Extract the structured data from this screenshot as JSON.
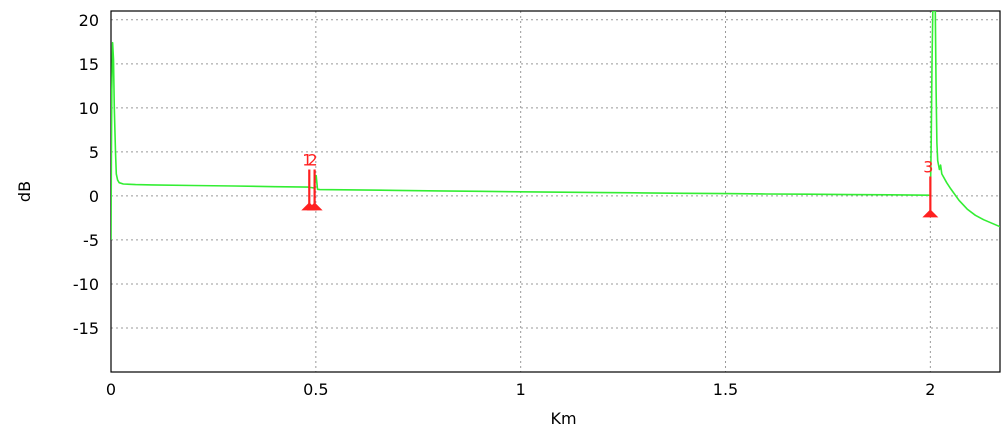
{
  "chart_data": {
    "type": "line",
    "xlabel": "Km",
    "ylabel": "dB",
    "xlim": [
      0,
      2.17
    ],
    "ylim": [
      -20,
      21
    ],
    "x_ticks": [
      {
        "value": 0,
        "label": "0"
      },
      {
        "value": 0.5,
        "label": "0.5"
      },
      {
        "value": 1,
        "label": "1"
      },
      {
        "value": 1.5,
        "label": "1.5"
      },
      {
        "value": 2,
        "label": "2"
      }
    ],
    "y_ticks": [
      {
        "value": 20,
        "label": "20"
      },
      {
        "value": 15,
        "label": "15"
      },
      {
        "value": 10,
        "label": "10"
      },
      {
        "value": 5,
        "label": "5"
      },
      {
        "value": 0,
        "label": "0"
      },
      {
        "value": -5,
        "label": "-5"
      },
      {
        "value": -10,
        "label": "-10"
      },
      {
        "value": -15,
        "label": "-15"
      }
    ],
    "grid": true,
    "colors": {
      "trace": "#33ee33",
      "marker": "#ff2020",
      "grid": "#999999",
      "axis": "#000000"
    },
    "series": [
      {
        "points": [
          [
            0.0,
            -5.0
          ],
          [
            0.001,
            5.0
          ],
          [
            0.002,
            12.0
          ],
          [
            0.004,
            17.4
          ],
          [
            0.006,
            15.5
          ],
          [
            0.008,
            10.0
          ],
          [
            0.011,
            5.0
          ],
          [
            0.013,
            2.5
          ],
          [
            0.016,
            1.8
          ],
          [
            0.02,
            1.5
          ],
          [
            0.03,
            1.35
          ],
          [
            0.06,
            1.28
          ],
          [
            0.1,
            1.25
          ],
          [
            0.2,
            1.18
          ],
          [
            0.3,
            1.12
          ],
          [
            0.4,
            1.05
          ],
          [
            0.48,
            1.0
          ],
          [
            0.488,
            0.95
          ],
          [
            0.496,
            0.9
          ],
          [
            0.499,
            2.3
          ],
          [
            0.501,
            2.3
          ],
          [
            0.504,
            0.75
          ],
          [
            0.51,
            0.72
          ],
          [
            0.6,
            0.68
          ],
          [
            0.7,
            0.62
          ],
          [
            0.8,
            0.57
          ],
          [
            0.9,
            0.52
          ],
          [
            1.0,
            0.47
          ],
          [
            1.1,
            0.42
          ],
          [
            1.2,
            0.38
          ],
          [
            1.3,
            0.34
          ],
          [
            1.4,
            0.3
          ],
          [
            1.5,
            0.26
          ],
          [
            1.6,
            0.22
          ],
          [
            1.7,
            0.19
          ],
          [
            1.8,
            0.15
          ],
          [
            1.9,
            0.12
          ],
          [
            1.995,
            0.08
          ],
          [
            2.0,
            0.05
          ],
          [
            2.002,
            6.0
          ],
          [
            2.004,
            15.0
          ],
          [
            2.006,
            21.0
          ],
          [
            2.012,
            21.0
          ],
          [
            2.014,
            12.0
          ],
          [
            2.016,
            6.0
          ],
          [
            2.018,
            4.0
          ],
          [
            2.022,
            3.0
          ],
          [
            2.025,
            3.5
          ],
          [
            2.028,
            2.5
          ],
          [
            2.04,
            1.5
          ],
          [
            2.05,
            0.8
          ],
          [
            2.07,
            -0.5
          ],
          [
            2.09,
            -1.5
          ],
          [
            2.11,
            -2.2
          ],
          [
            2.13,
            -2.7
          ],
          [
            2.15,
            -3.1
          ],
          [
            2.17,
            -3.5
          ]
        ]
      }
    ],
    "markers": [
      {
        "label": "1",
        "x": 0.484,
        "y_top": 3.0,
        "y_bottom": -1.3
      },
      {
        "label": "2",
        "x": 0.497,
        "y_top": 3.0,
        "y_bottom": -1.3
      },
      {
        "label": "3",
        "x": 2.0,
        "y_top": 2.2,
        "y_bottom": -2.1
      }
    ]
  }
}
